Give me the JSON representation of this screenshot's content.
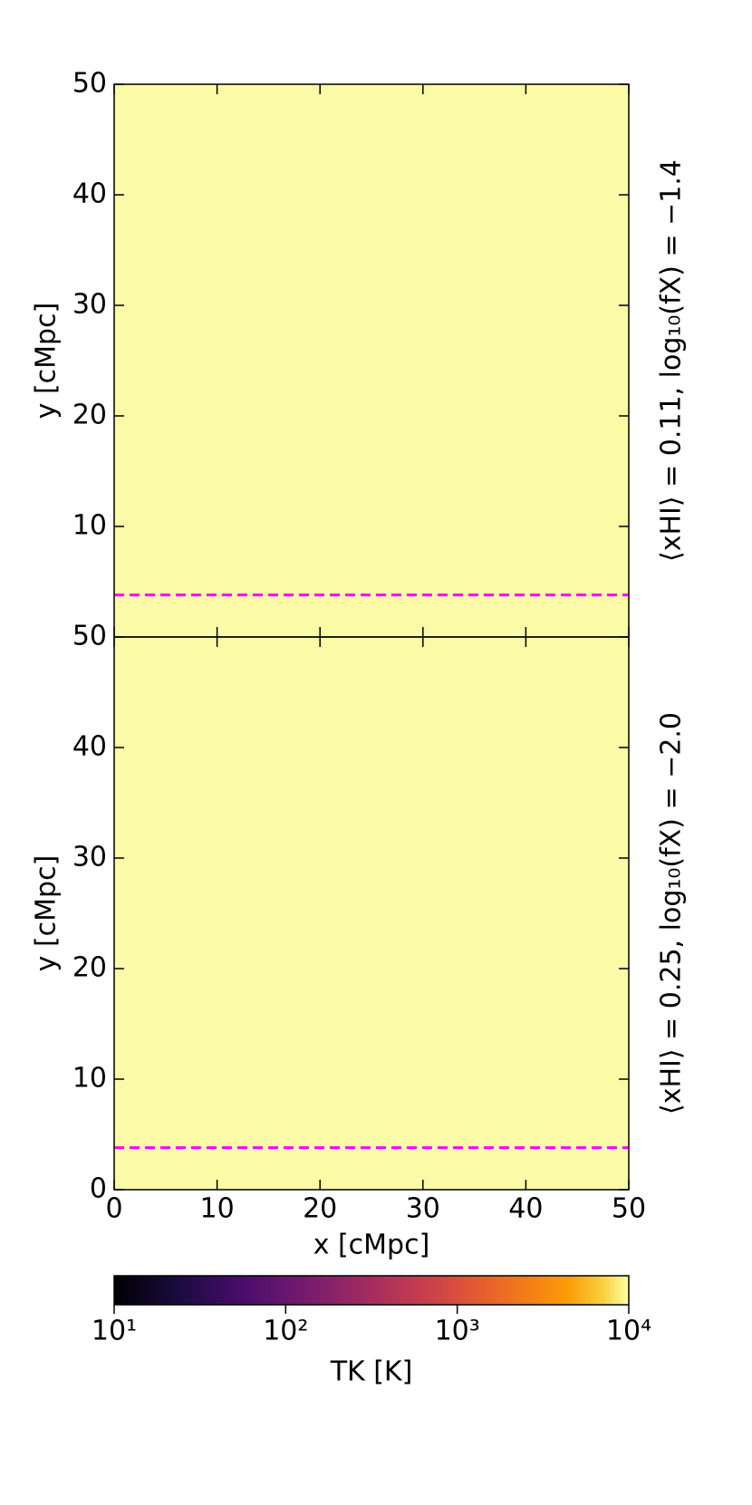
{
  "chart_data": [
    {
      "type": "heatmap",
      "ylabel": "y [cMpc]",
      "annotation": "⟨xHI⟩ = 0.11, log₁₀(fX) = −1.4",
      "xlim": [
        0,
        50
      ],
      "ylim": [
        0,
        50
      ],
      "xticks": [
        0,
        10,
        20,
        30,
        40,
        50
      ],
      "yticks": [
        10,
        20,
        30,
        40,
        50
      ],
      "show_xtick_labels": false,
      "hline": 3.8,
      "hline_color": "#ff00ff",
      "region_color": "#6d2670",
      "background_color": "#fbfaa6"
    },
    {
      "type": "heatmap",
      "xlabel": "x [cMpc]",
      "ylabel": "y [cMpc]",
      "annotation": "⟨xHI⟩ = 0.25, log₁₀(fX) = −2.0",
      "xlim": [
        0,
        50
      ],
      "ylim": [
        0,
        50
      ],
      "xticks": [
        0,
        10,
        20,
        30,
        40,
        50
      ],
      "yticks": [
        0,
        10,
        20,
        30,
        40,
        50
      ],
      "show_xtick_labels": true,
      "hline": 3.8,
      "hline_color": "#ff00ff",
      "region_color": "#2c1157",
      "background_color": "#fbfaa6"
    },
    {
      "type": "colorbar",
      "label": "TK [K]",
      "log_scale": true,
      "xlim": [
        10,
        10000
      ],
      "xticks": [
        {
          "value": 10,
          "label": "10¹"
        },
        {
          "value": 100,
          "label": "10²"
        },
        {
          "value": 1000,
          "label": "10³"
        },
        {
          "value": 10000,
          "label": "10⁴"
        }
      ]
    }
  ]
}
